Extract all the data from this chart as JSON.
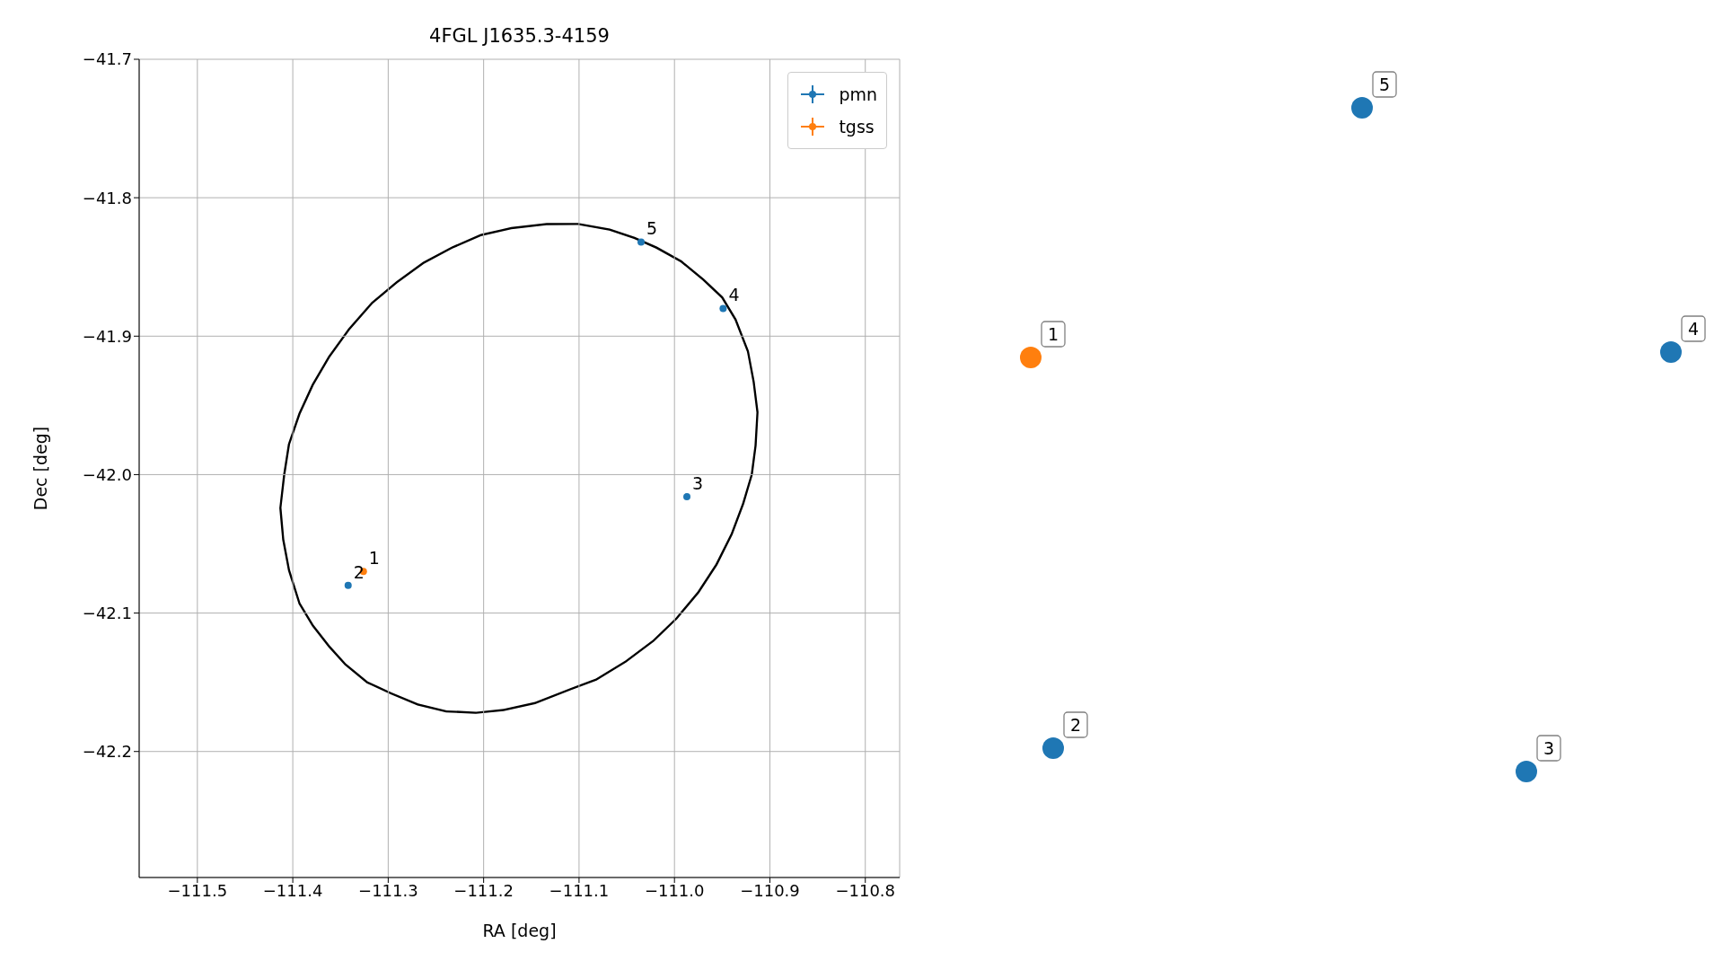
{
  "chart_data": [
    {
      "type": "scatter",
      "title": "4FGL J1635.3-4159",
      "xlabel": "RA [deg]",
      "ylabel": "Dec [deg]",
      "xlim": [
        -111.561,
        -110.764
      ],
      "ylim": [
        -42.291,
        -41.7
      ],
      "xticks": [
        -111.5,
        -111.4,
        -111.3,
        -111.2,
        -111.1,
        {
          "value": -111.0,
          "label": "−111.0"
        },
        -110.9,
        -110.8
      ],
      "yticks": [
        -42.2,
        -42.1,
        {
          "value": -42.0,
          "label": "−42.0"
        },
        -41.9,
        -41.8,
        -41.7
      ],
      "grid": true,
      "legend": "top right",
      "marker": "circle",
      "series": [
        {
          "name": "pmn",
          "color": "#1f77b4",
          "x": [
            -111.342,
            -110.987,
            -110.949,
            -111.035
          ],
          "values": [
            -42.08,
            -42.016,
            -41.88,
            -41.832
          ]
        },
        {
          "name": "tgss",
          "color": "#ff7f0e",
          "x": [
            -111.326
          ],
          "values": [
            -42.07
          ]
        }
      ],
      "annotations": [
        {
          "text": "1",
          "x": -111.326,
          "y": -42.07
        },
        {
          "text": "2",
          "x": -111.342,
          "y": -42.08
        },
        {
          "text": "3",
          "x": -110.987,
          "y": -42.016
        },
        {
          "text": "4",
          "x": -110.949,
          "y": -41.88
        },
        {
          "text": "5",
          "x": -111.035,
          "y": -41.832
        }
      ]
    },
    {
      "type": "other",
      "annotations": [
        "1",
        "2",
        "3",
        "4",
        "5"
      ]
    }
  ]
}
